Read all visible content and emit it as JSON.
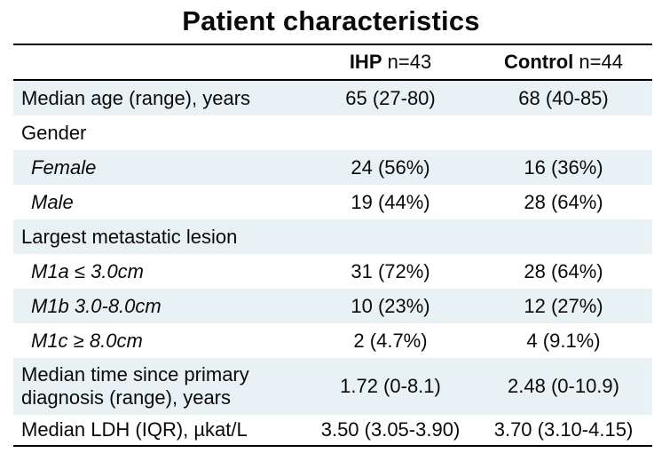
{
  "title": "Patient characteristics",
  "table": {
    "columns": [
      {
        "group": "IHP",
        "n": "n=43"
      },
      {
        "group": "Control",
        "n": "n=44"
      }
    ],
    "rows": [
      {
        "label": "Median age (range), years",
        "ihp": "65 (27-80)",
        "control": "68 (40-85)",
        "sub": false
      },
      {
        "label": "Gender",
        "ihp": "",
        "control": "",
        "sub": false
      },
      {
        "label": "Female",
        "ihp": "24 (56%)",
        "control": "16 (36%)",
        "sub": true
      },
      {
        "label": "Male",
        "ihp": "19 (44%)",
        "control": "28 (64%)",
        "sub": true
      },
      {
        "label": "Largest metastatic lesion",
        "ihp": "",
        "control": "",
        "sub": false
      },
      {
        "label": "M1a ≤ 3.0cm",
        "ihp": "31 (72%)",
        "control": "28 (64%)",
        "sub": true
      },
      {
        "label": "M1b 3.0-8.0cm",
        "ihp": "10 (23%)",
        "control": "12 (27%)",
        "sub": true
      },
      {
        "label": "M1c ≥ 8.0cm",
        "ihp": "2 (4.7%)",
        "control": "4 (9.1%)",
        "sub": true
      },
      {
        "label": "Median time since primary diagnosis (range), years",
        "ihp": "1.72 (0-8.1)",
        "control": "2.48 (0-10.9)",
        "sub": false,
        "tall": true
      },
      {
        "label": "Median LDH (IQR), µkat/L",
        "ihp": "3.50 (3.05-3.90)",
        "control": "3.70 (3.10-4.15)",
        "sub": false,
        "short": true
      }
    ]
  },
  "colors": {
    "row_tint": "#e8f2f4",
    "rule": "#000000",
    "text": "#0a0a0a"
  }
}
